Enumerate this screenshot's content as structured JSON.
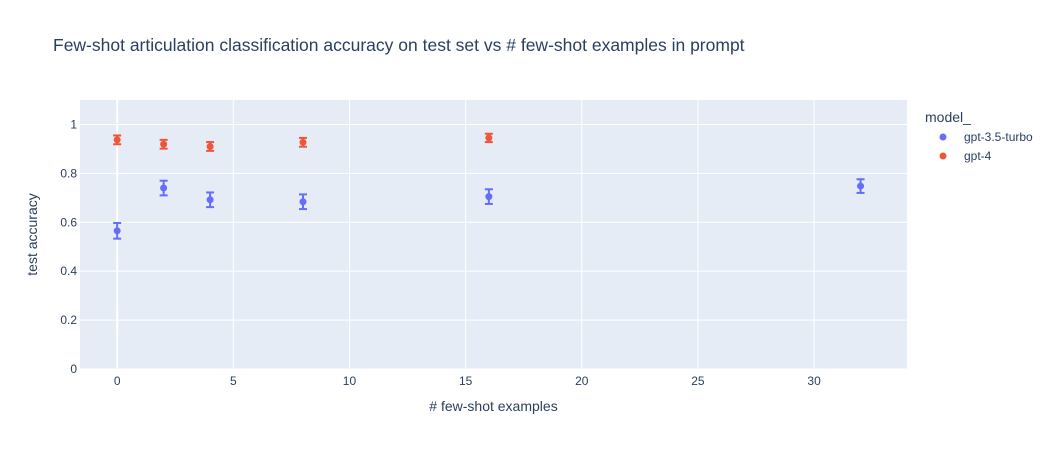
{
  "chart_data": {
    "type": "scatter",
    "title": "Few-shot articulation classification accuracy on test set vs # few-shot examples in prompt",
    "xlabel": "# few-shot examples",
    "ylabel": "test accuracy",
    "xlim": [
      -1.6,
      34.0
    ],
    "ylim": [
      0,
      1.1
    ],
    "x_ticks": [
      0,
      5,
      10,
      15,
      20,
      25,
      30
    ],
    "y_ticks": [
      0,
      0.2,
      0.4,
      0.6,
      0.8,
      1
    ],
    "y_tick_labels": [
      "0",
      "0.2",
      "0.4",
      "0.6",
      "0.8",
      "1"
    ],
    "grid": true,
    "legend": {
      "title": "model_",
      "placement": "right"
    },
    "series": [
      {
        "name": "gpt-3.5-turbo",
        "color": "#636efa",
        "x": [
          0,
          2,
          4,
          8,
          16,
          32
        ],
        "y": [
          0.565,
          0.74,
          0.692,
          0.684,
          0.705,
          0.748
        ],
        "error": [
          0.032,
          0.03,
          0.03,
          0.03,
          0.03,
          0.028
        ]
      },
      {
        "name": "gpt-4",
        "color": "#ef553b",
        "x": [
          0,
          2,
          4,
          8,
          16
        ],
        "y": [
          0.937,
          0.919,
          0.91,
          0.927,
          0.945
        ],
        "error": [
          0.018,
          0.018,
          0.018,
          0.018,
          0.017
        ]
      }
    ]
  }
}
